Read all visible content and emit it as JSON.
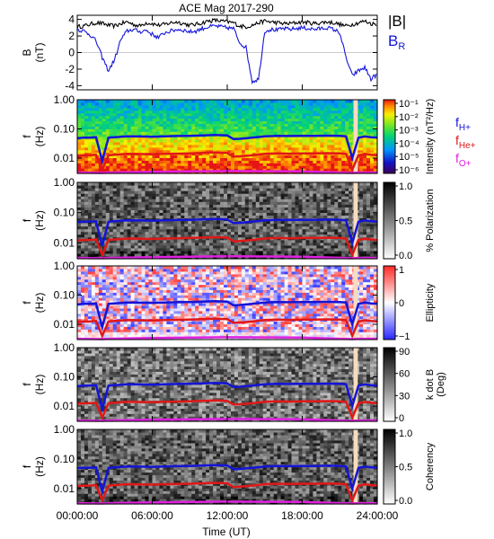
{
  "chart_data": {
    "title": "ACE Mag 2017-290",
    "xlabel": "Time (UT)",
    "x_ticks": [
      "00:00:00",
      "06:00:00",
      "12:00:00",
      "18:00:00",
      "24:00:00"
    ],
    "x_range_hours": [
      0,
      24
    ],
    "panels": [
      {
        "type": "line",
        "ylabel": "B",
        "yunit": "(nT)",
        "ylim": [
          -4.5,
          4.5
        ],
        "y_ticks": [
          "4",
          "2",
          "0",
          "-2",
          "-4"
        ],
        "y_tick_values": [
          4,
          2,
          0,
          -2,
          -4
        ],
        "legend": [
          {
            "label": "|B|",
            "color": "#000000"
          },
          {
            "label": "B",
            "sub": "R",
            "color": "#1414d8"
          }
        ],
        "series": [
          {
            "name": "|B|",
            "color": "#000000",
            "x": [
              0,
              0.5,
              1,
              1.5,
              2,
              2.5,
              3,
              3.5,
              4,
              4.5,
              5,
              5.5,
              6,
              6.5,
              7,
              7.5,
              8,
              8.5,
              9,
              9.5,
              10,
              10.5,
              11,
              11.5,
              12,
              12.5,
              13,
              13.5,
              14,
              14.5,
              15,
              15.5,
              16,
              16.5,
              17,
              17.5,
              18,
              18.5,
              19,
              19.5,
              20,
              20.5,
              21,
              21.5,
              22,
              22.5,
              23,
              23.5,
              24
            ],
            "y": [
              3.1,
              3.2,
              3.4,
              3.6,
              3.5,
              3.3,
              3.2,
              3.5,
              3.7,
              3.4,
              3.2,
              3.6,
              3.5,
              3.3,
              3.4,
              3.6,
              3.7,
              3.5,
              3.3,
              3.4,
              3.6,
              3.8,
              3.9,
              3.8,
              3.7,
              3.6,
              3.2,
              3.1,
              3.3,
              3.6,
              3.8,
              3.7,
              3.6,
              3.5,
              3.5,
              3.6,
              3.7,
              3.6,
              3.5,
              3.6,
              3.7,
              3.6,
              3.4,
              3.2,
              3.4,
              3.6,
              3.8,
              3.5,
              3.4
            ]
          },
          {
            "name": "BR",
            "color": "#1414d8",
            "x": [
              0,
              0.5,
              1,
              1.5,
              2,
              2.5,
              3,
              3.5,
              4,
              4.5,
              5,
              5.5,
              6,
              6.5,
              7,
              7.5,
              8,
              8.5,
              9,
              9.5,
              10,
              10.5,
              11,
              11.5,
              12,
              12.5,
              13,
              13.5,
              14,
              14.5,
              15,
              15.5,
              16,
              16.5,
              17,
              17.5,
              18,
              18.5,
              19,
              19.5,
              20,
              20.5,
              21,
              21.5,
              22,
              22.5,
              23,
              23.5,
              24
            ],
            "y": [
              2.8,
              2.6,
              2.2,
              1.4,
              -0.6,
              -2.2,
              -0.8,
              1.6,
              2.6,
              2.8,
              2.5,
              2.7,
              2.2,
              1.8,
              2.4,
              2.6,
              2.8,
              2.7,
              2.5,
              2.6,
              2.9,
              3.1,
              3.2,
              3.1,
              3.0,
              2.9,
              1.2,
              0.6,
              -3.5,
              -3.2,
              2.6,
              2.8,
              2.7,
              2.9,
              2.8,
              2.9,
              3.0,
              2.9,
              2.8,
              2.9,
              3.0,
              2.8,
              2.4,
              -0.6,
              -2.8,
              -2.2,
              -1.8,
              -3.2,
              -2.6
            ]
          }
        ]
      },
      {
        "type": "heatmap",
        "ylabel": "f",
        "yunit": "(Hz)",
        "ylim": [
          0.003,
          1.0
        ],
        "y_ticks": [
          "1.00",
          "0.10",
          "0.01"
        ],
        "y_tick_values": [
          1.0,
          0.1,
          0.01
        ],
        "colorbar": {
          "label": "Intensity (nT²/Hz)",
          "ticks": [
            "10⁻¹",
            "10⁻²",
            "10⁻³",
            "10⁻⁴",
            "10⁻⁵",
            "10⁻⁶"
          ],
          "scale": "rainbow"
        },
        "legend": [
          {
            "label": "f",
            "sub": "H+",
            "color": "#1414d8"
          },
          {
            "label": "f",
            "sub": "He+",
            "color": "#e01818"
          },
          {
            "label": "f",
            "sub": "O+",
            "color": "#e020e0"
          }
        ]
      },
      {
        "type": "heatmap",
        "ylabel": "f",
        "yunit": "(Hz)",
        "ylim": [
          0.003,
          1.0
        ],
        "y_ticks": [
          "1.00",
          "0.10",
          "0.01"
        ],
        "y_tick_values": [
          1.0,
          0.1,
          0.01
        ],
        "colorbar": {
          "label": "% Polarization",
          "ticks": [
            "1.0",
            "0.5",
            "0.0"
          ],
          "scale": "gray"
        }
      },
      {
        "type": "heatmap",
        "ylabel": "f",
        "yunit": "(Hz)",
        "ylim": [
          0.003,
          1.0
        ],
        "y_ticks": [
          "1.00",
          "0.10",
          "0.01"
        ],
        "y_tick_values": [
          1.0,
          0.1,
          0.01
        ],
        "colorbar": {
          "label": "Ellipticity",
          "ticks": [
            "1",
            "0",
            "−1"
          ],
          "scale": "bwr"
        }
      },
      {
        "type": "heatmap",
        "ylabel": "f",
        "yunit": "(Hz)",
        "ylim": [
          0.003,
          1.0
        ],
        "y_ticks": [
          "1.00",
          "0.10",
          "0.01"
        ],
        "y_tick_values": [
          1.0,
          0.1,
          0.01
        ],
        "colorbar": {
          "label": "k dot B",
          "label2": "(Deg)",
          "ticks": [
            "90",
            "60",
            "30",
            "0"
          ],
          "scale": "gray"
        }
      },
      {
        "type": "heatmap",
        "ylabel": "f",
        "yunit": "(Hz)",
        "ylim": [
          0.003,
          1.0
        ],
        "y_ticks": [
          "1.00",
          "0.10",
          "0.01"
        ],
        "y_tick_values": [
          1.0,
          0.1,
          0.01
        ],
        "colorbar": {
          "label": "Coherency",
          "ticks": [
            "1.0",
            "0.5",
            "0.0"
          ],
          "scale": "gray"
        }
      }
    ],
    "gyrofrequency_lines": [
      {
        "name": "fH+",
        "color": "#1414d8",
        "x": [
          0,
          0.5,
          1,
          1.5,
          2,
          2.5,
          3,
          3.5,
          4,
          5,
          6,
          7,
          8,
          9,
          10,
          11,
          12,
          12.5,
          13,
          14,
          15,
          16,
          17,
          18,
          19,
          20,
          21,
          21.5,
          22,
          22.5,
          23,
          23.5,
          24
        ],
        "y": [
          0.048,
          0.05,
          0.05,
          0.052,
          0.008,
          0.05,
          0.052,
          0.054,
          0.056,
          0.055,
          0.054,
          0.056,
          0.057,
          0.058,
          0.06,
          0.062,
          0.06,
          0.045,
          0.046,
          0.05,
          0.056,
          0.058,
          0.057,
          0.058,
          0.058,
          0.059,
          0.058,
          0.056,
          0.01,
          0.05,
          0.055,
          0.052,
          0.05
        ]
      },
      {
        "name": "fHe+",
        "color": "#e01818",
        "x": [
          0,
          0.5,
          1,
          1.5,
          2,
          2.5,
          3,
          3.5,
          4,
          5,
          6,
          7,
          8,
          9,
          10,
          11,
          12,
          12.5,
          13,
          14,
          15,
          16,
          17,
          18,
          19,
          20,
          21,
          21.5,
          22,
          22.5,
          23,
          23.5,
          24
        ],
        "y": [
          0.012,
          0.0125,
          0.0125,
          0.013,
          0.004,
          0.0125,
          0.013,
          0.0135,
          0.014,
          0.0138,
          0.0135,
          0.014,
          0.0142,
          0.0145,
          0.015,
          0.0155,
          0.015,
          0.0112,
          0.0115,
          0.0125,
          0.014,
          0.0145,
          0.0142,
          0.0145,
          0.0145,
          0.0148,
          0.0145,
          0.014,
          0.004,
          0.0125,
          0.0138,
          0.013,
          0.0125
        ]
      },
      {
        "name": "fO+",
        "color": "#e020e0",
        "x": [
          0,
          2,
          2.5,
          6,
          12,
          18,
          22,
          22.5,
          24
        ],
        "y": [
          0.0032,
          0.0031,
          0.0032,
          0.0034,
          0.0036,
          0.0035,
          0.0031,
          0.0032,
          0.0032
        ]
      }
    ],
    "data_gap_hours": [
      22.1,
      22.45
    ]
  }
}
